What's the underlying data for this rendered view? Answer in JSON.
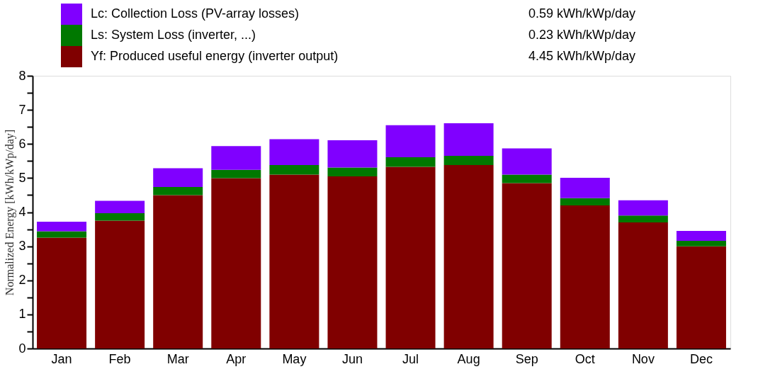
{
  "chart_data": {
    "type": "bar",
    "stacked": true,
    "ylabel": "Normalized Energy [kWh/kWp/day]",
    "categories": [
      "Jan",
      "Feb",
      "Mar",
      "Apr",
      "May",
      "Jun",
      "Jul",
      "Aug",
      "Sep",
      "Oct",
      "Nov",
      "Dec"
    ],
    "series": [
      {
        "name": "Yf: Produced useful energy  (inverter output)",
        "color": "#800000",
        "values": [
          3.25,
          3.75,
          4.5,
          5.0,
          5.1,
          5.05,
          5.33,
          5.38,
          4.85,
          4.2,
          3.7,
          3.0
        ]
      },
      {
        "name": "Ls: System Loss  (inverter, ...)",
        "color": "#007800",
        "values": [
          0.19,
          0.22,
          0.24,
          0.24,
          0.28,
          0.26,
          0.28,
          0.27,
          0.25,
          0.21,
          0.2,
          0.16
        ]
      },
      {
        "name": "Lc: Collection Loss (PV-array losses)",
        "color": "#8000ff",
        "values": [
          0.28,
          0.36,
          0.55,
          0.7,
          0.76,
          0.8,
          0.94,
          0.96,
          0.77,
          0.6,
          0.45,
          0.29
        ]
      }
    ],
    "annotations": [
      "0.59 kWh/kWp/day",
      "0.23 kWh/kWp/day",
      "4.45 kWh/kWp/day"
    ],
    "ylim": [
      0,
      8
    ],
    "yticks": [
      0,
      {
        "value": 0.5,
        "label": null
      },
      1,
      {
        "value": 1.5,
        "label": null
      },
      2,
      {
        "value": 2.5,
        "label": null
      },
      3,
      {
        "value": 3.5,
        "label": null
      },
      4,
      {
        "value": 4.5,
        "label": null
      },
      5,
      {
        "value": 5.5,
        "label": null
      },
      6,
      {
        "value": 6.5,
        "label": null
      },
      7,
      {
        "value": 7.5,
        "label": null
      },
      8
    ],
    "grid": false,
    "legend": "top left"
  }
}
